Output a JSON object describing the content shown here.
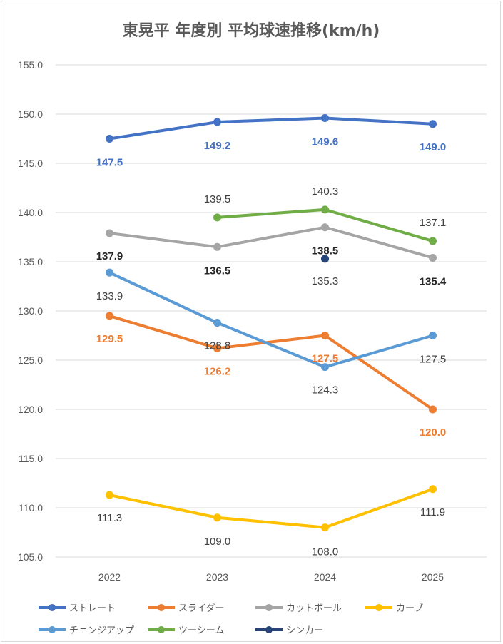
{
  "chart_data": {
    "type": "line",
    "title": "東晃平 年度別 平均球速推移(km/h)",
    "xlabel": "",
    "ylabel": "",
    "categories": [
      "2022",
      "2023",
      "2024",
      "2025"
    ],
    "ylim": [
      105,
      155
    ],
    "yticks": [
      "105.0",
      "110.0",
      "115.0",
      "120.0",
      "125.0",
      "130.0",
      "135.0",
      "140.0",
      "145.0",
      "150.0",
      "155.0"
    ],
    "grid": true,
    "legend_position": "bottom",
    "series": [
      {
        "name": "ストレート",
        "color": "#4472C4",
        "values": [
          147.5,
          149.2,
          149.6,
          149.0
        ],
        "labels": [
          "147.5",
          "149.2",
          "149.6",
          "149.0"
        ]
      },
      {
        "name": "スライダー",
        "color": "#ED7D31",
        "values": [
          129.5,
          126.2,
          127.5,
          120.0
        ],
        "labels": [
          "129.5",
          "126.2",
          "127.5",
          "120.0"
        ]
      },
      {
        "name": "カットボール",
        "color": "#A5A5A5",
        "values": [
          137.9,
          136.5,
          138.5,
          135.4
        ],
        "labels": [
          "137.9",
          "136.5",
          "138.5",
          "135.4"
        ]
      },
      {
        "name": "カーブ",
        "color": "#FFC000",
        "values": [
          111.3,
          109.0,
          108.0,
          111.9
        ],
        "labels": [
          "111.3",
          "109.0",
          "108.0",
          "111.9"
        ]
      },
      {
        "name": "チェンジアップ",
        "color": "#5B9BD5",
        "values": [
          133.9,
          128.8,
          124.3,
          127.5
        ],
        "labels": [
          "133.9",
          "128.8",
          "124.3",
          "127.5"
        ]
      },
      {
        "name": "ツーシーム",
        "color": "#70AD47",
        "values": [
          null,
          139.5,
          140.3,
          137.1
        ],
        "labels": [
          "",
          "139.5",
          "140.3",
          "137.1"
        ]
      },
      {
        "name": "シンカー",
        "color": "#264478",
        "values": [
          null,
          null,
          135.3,
          null
        ],
        "labels": [
          "",
          "",
          "135.3",
          ""
        ]
      }
    ]
  }
}
